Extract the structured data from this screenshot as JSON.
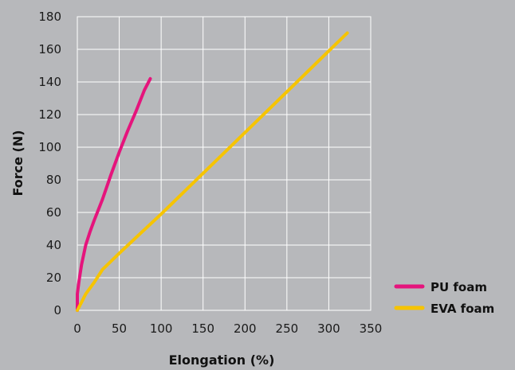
{
  "chart_data": {
    "type": "line",
    "title": "",
    "xlabel": "Elongation (%)",
    "ylabel": "Force (N)",
    "xlim": [
      0,
      350
    ],
    "ylim": [
      0,
      180
    ],
    "xticks": [
      0,
      50,
      100,
      150,
      200,
      250,
      300,
      350
    ],
    "yticks": [
      0,
      20,
      40,
      60,
      80,
      100,
      120,
      140,
      160,
      180
    ],
    "grid": true,
    "legend_position": "bottom-right",
    "series": [
      {
        "name": "PU foam",
        "color": "#e5147c",
        "x": [
          0,
          0,
          2,
          5,
          10,
          15,
          20,
          30,
          40,
          50,
          60,
          70,
          80,
          87
        ],
        "y": [
          0,
          10,
          18,
          28,
          40,
          48,
          55,
          68,
          83,
          97,
          110,
          122,
          135,
          142
        ]
      },
      {
        "name": "EVA foam",
        "color": "#f6c400",
        "x": [
          0,
          5,
          10,
          20,
          30,
          40,
          50,
          75,
          100,
          150,
          200,
          250,
          300,
          322
        ],
        "y": [
          0,
          5,
          10,
          17,
          25,
          30,
          35,
          47,
          59,
          84,
          109,
          134,
          159,
          170
        ]
      }
    ]
  }
}
